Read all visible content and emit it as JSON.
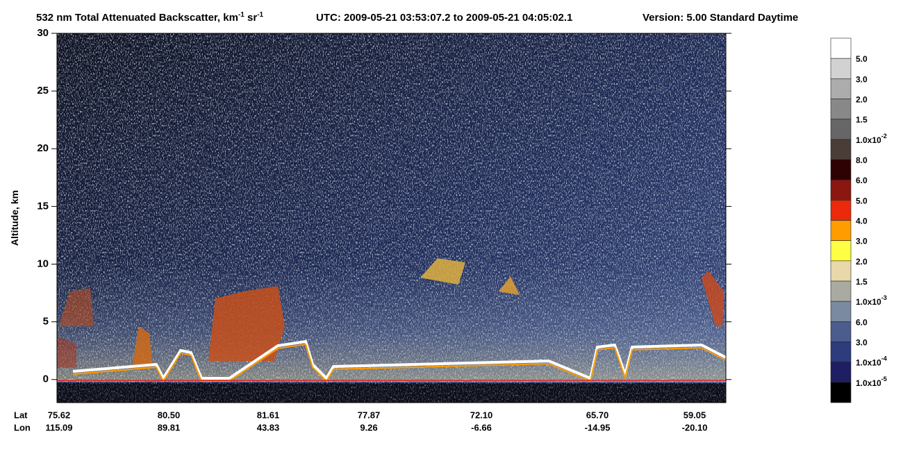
{
  "chart_data": {
    "type": "heatmap",
    "title": {
      "quantity": "532 nm Total Attenuated Backscatter, km",
      "unit1_exp": "-1",
      "unit2": " sr",
      "unit2_exp": "-1",
      "time": "UTC:  2009-05-21 03:53:07.2  to  2009-05-21 04:05:02.1",
      "version": "Version: 5.00  Standard  Daytime"
    },
    "ylabel": "Altitude, km",
    "ylim": [
      -2,
      30
    ],
    "yticks": [
      0,
      5,
      10,
      15,
      20,
      25,
      30
    ],
    "geo": {
      "lat_label": "Lat",
      "lon_label": "Lon",
      "lat": [
        "75.62",
        "80.50",
        "81.61",
        "77.87",
        "72.10",
        "65.70",
        "59.05"
      ],
      "lon": [
        "115.09",
        "89.81",
        "43.83",
        "9.26",
        "-6.66",
        "-14.95",
        "-20.10"
      ]
    },
    "colorbar": {
      "colors": [
        "#ffffff",
        "#d2d2d2",
        "#acacac",
        "#888888",
        "#666666",
        "#4a3d38",
        "#2e0202",
        "#8c1610",
        "#ea2a0a",
        "#ff9c00",
        "#ffff44",
        "#e8d8aa",
        "#a9aba2",
        "#7a8aa0",
        "#4c5c8c",
        "#2c3c7c",
        "#1e1e62",
        "#000000"
      ],
      "labels": [
        {
          "text": "5.0"
        },
        {
          "text": "3.0"
        },
        {
          "text": "2.0"
        },
        {
          "text": "1.5"
        },
        {
          "text": "1.0x10",
          "sup": "-2"
        },
        {
          "text": "8.0"
        },
        {
          "text": "6.0"
        },
        {
          "text": "5.0"
        },
        {
          "text": "4.0"
        },
        {
          "text": "3.0"
        },
        {
          "text": "2.0"
        },
        {
          "text": "1.5"
        },
        {
          "text": "1.0x10",
          "sup": "-3"
        },
        {
          "text": "6.0"
        },
        {
          "text": "3.0"
        },
        {
          "text": "1.0x10",
          "sup": "-4"
        },
        {
          "text": "1.0x10",
          "sup": "-5"
        }
      ]
    }
  }
}
